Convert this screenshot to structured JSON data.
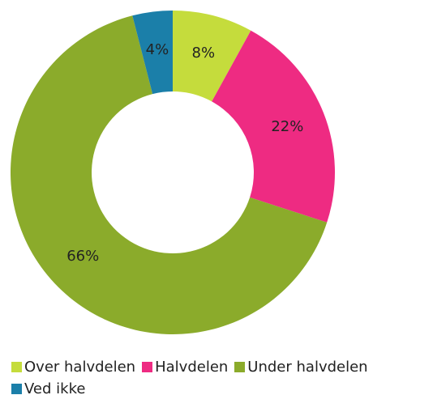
{
  "chart_data": {
    "type": "donut",
    "categories": [
      "Over halvdelen",
      "Halvdelen",
      "Under halvdelen",
      "Ved ikke"
    ],
    "values": [
      8,
      22,
      66,
      4
    ],
    "value_labels": [
      "8%",
      "22%",
      "66%",
      "4%"
    ],
    "colors": [
      "#c5dc3c",
      "#ee2b82",
      "#8bab2b",
      "#1b7fa9"
    ],
    "legend": "bottom"
  }
}
